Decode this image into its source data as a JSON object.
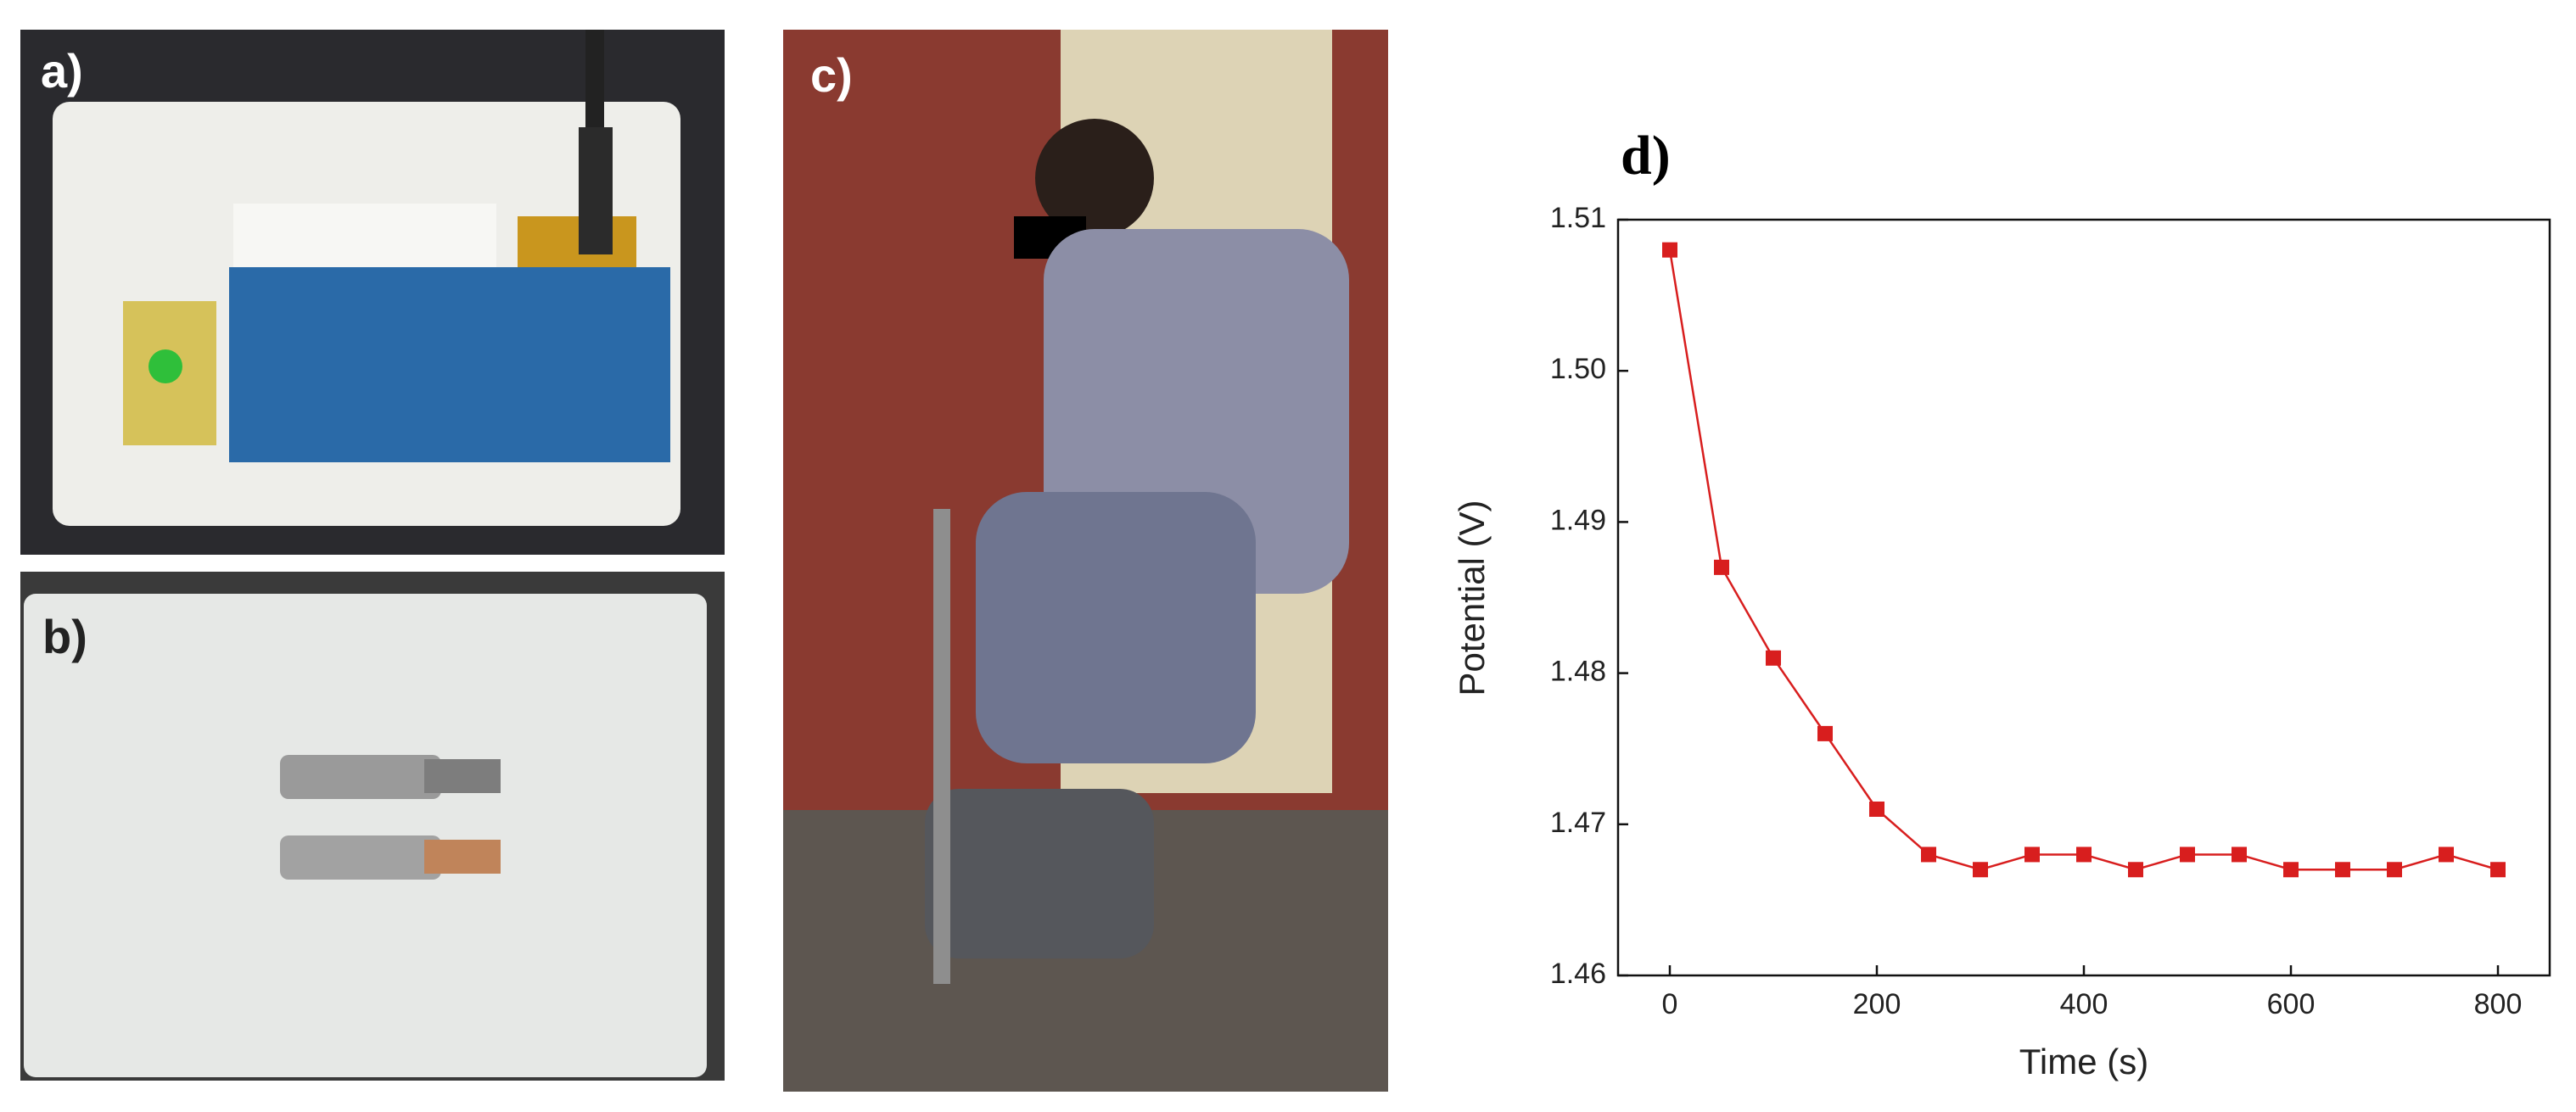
{
  "panels": [
    "a)",
    "b)",
    "c)"
  ],
  "chart_data": {
    "type": "line",
    "title": "d)",
    "x_label": "Time (s)",
    "y_label": "Potential (V)",
    "x": [
      0,
      50,
      100,
      150,
      200,
      250,
      300,
      350,
      400,
      450,
      500,
      550,
      600,
      650,
      700,
      750,
      800
    ],
    "series": [
      {
        "color": "#d81e1e",
        "values": [
          1.508,
          1.487,
          1.481,
          1.476,
          1.471,
          1.468,
          1.467,
          1.468,
          1.468,
          1.467,
          1.468,
          1.468,
          1.467,
          1.467,
          1.467,
          1.468,
          1.467
        ]
      }
    ],
    "xlim": [
      -50,
      850
    ],
    "xticks": [
      0,
      200,
      400,
      600,
      800
    ],
    "ylim": [
      1.46,
      1.51
    ],
    "yticks": [
      1.46,
      1.47,
      1.48,
      1.49,
      {
        "value": 1.5,
        "label": "1.50"
      },
      1.51
    ],
    "grid": false
  }
}
